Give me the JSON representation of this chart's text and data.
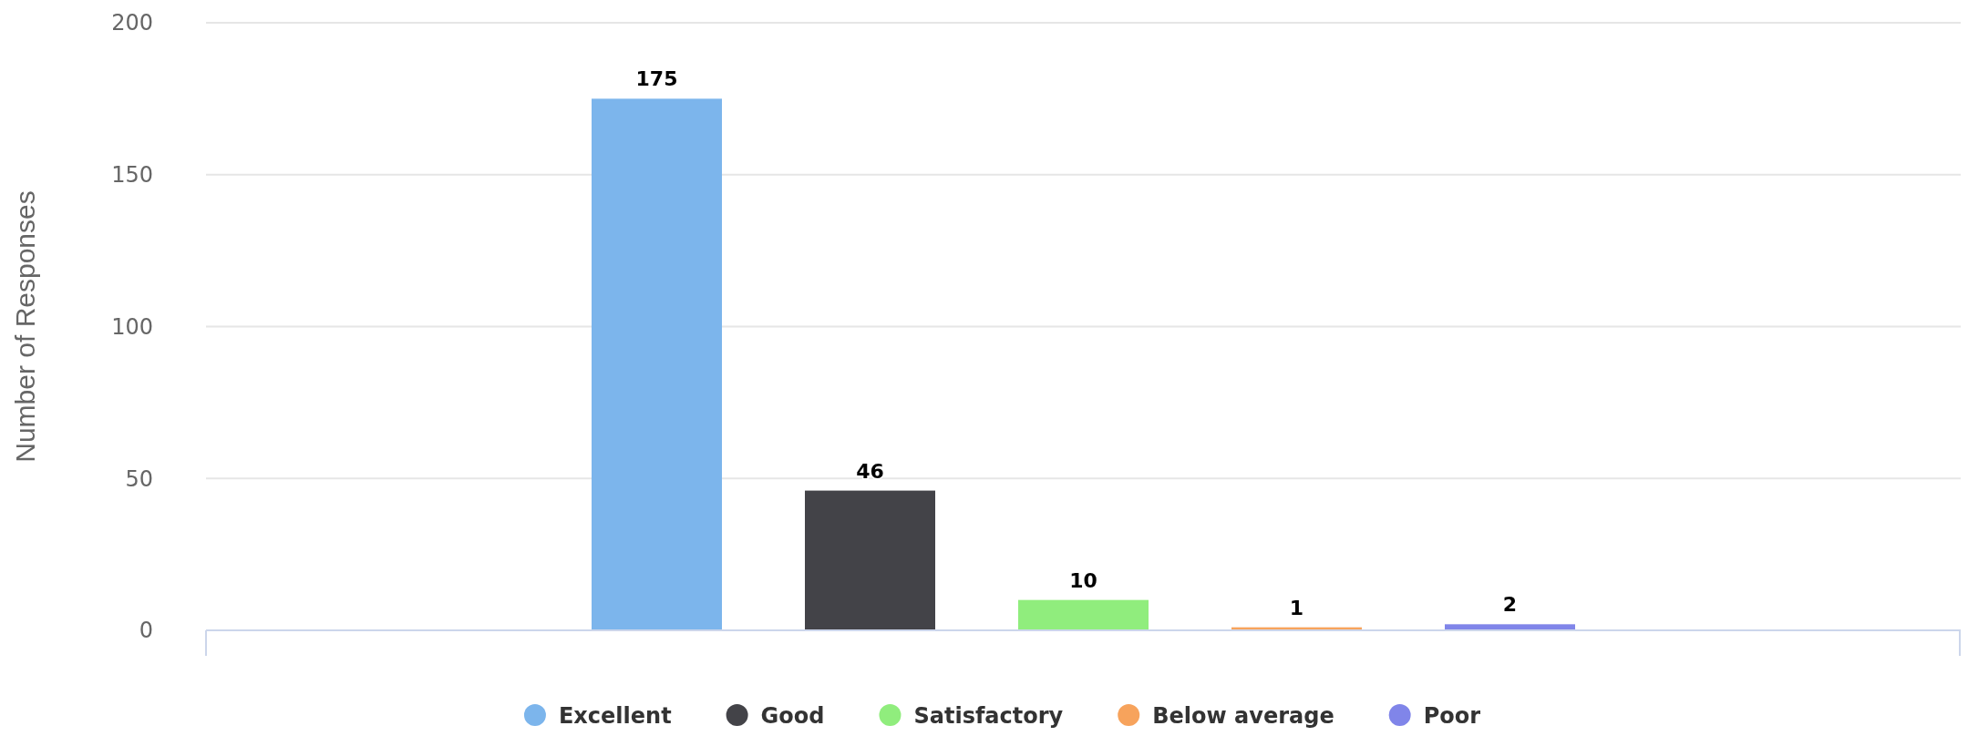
{
  "chart_data": {
    "type": "bar",
    "ylabel": "Number of Responses",
    "categories": [
      null
    ],
    "series": [
      {
        "name": "Excellent",
        "color": "#7cb5ec",
        "values": [
          175
        ]
      },
      {
        "name": "Good",
        "color": "#434348",
        "values": [
          46
        ]
      },
      {
        "name": "Satisfactory",
        "color": "#90ed7d",
        "values": [
          10
        ]
      },
      {
        "name": "Below average",
        "color": "#f7a35c",
        "values": [
          1
        ]
      },
      {
        "name": "Poor",
        "color": "#8085e9",
        "values": [
          2
        ]
      }
    ],
    "ylim": [
      0,
      200
    ],
    "yticks": [
      0,
      50,
      100,
      150,
      200
    ],
    "grid": "y",
    "legend": "bottom",
    "data_labels": true
  }
}
